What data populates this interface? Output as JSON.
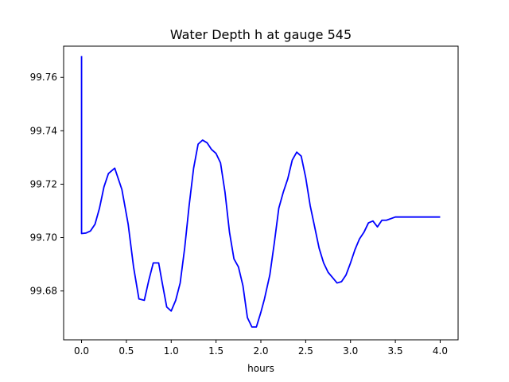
{
  "chart_data": {
    "type": "line",
    "title": "Water Depth h at gauge 545",
    "xlabel": "hours",
    "ylabel": "",
    "xlim": [
      -0.2,
      4.2
    ],
    "ylim": [
      99.6617,
      99.7717
    ],
    "x_ticks": [
      0.0,
      0.5,
      1.0,
      1.5,
      2.0,
      2.5,
      3.0,
      3.5,
      4.0
    ],
    "x_tick_labels": [
      "0.0",
      "0.5",
      "1.0",
      "1.5",
      "2.0",
      "2.5",
      "3.0",
      "3.5",
      "4.0"
    ],
    "y_ticks": [
      99.68,
      99.7,
      99.72,
      99.74,
      99.76
    ],
    "y_tick_labels": [
      "99.68",
      "99.70",
      "99.72",
      "99.74",
      "99.76"
    ],
    "grid": false,
    "series": [
      {
        "color": "#0000ff",
        "x": [
          0.0,
          0.0,
          0.05,
          0.1,
          0.15,
          0.2,
          0.25,
          0.3,
          0.37,
          0.45,
          0.52,
          0.58,
          0.64,
          0.7,
          0.75,
          0.8,
          0.86,
          0.9,
          0.95,
          1.0,
          1.05,
          1.1,
          1.15,
          1.2,
          1.25,
          1.3,
          1.35,
          1.4,
          1.45,
          1.5,
          1.55,
          1.6,
          1.65,
          1.7,
          1.75,
          1.8,
          1.85,
          1.9,
          1.95,
          2.0,
          2.04,
          2.1,
          2.15,
          2.2,
          2.25,
          2.3,
          2.35,
          2.4,
          2.45,
          2.5,
          2.55,
          2.6,
          2.65,
          2.7,
          2.75,
          2.8,
          2.85,
          2.9,
          2.95,
          3.0,
          3.05,
          3.1,
          3.15,
          3.2,
          3.25,
          3.3,
          3.35,
          3.4,
          3.5,
          3.6,
          3.7,
          3.8,
          3.9,
          4.0
        ],
        "y": [
          99.768,
          99.7015,
          99.7017,
          99.7025,
          99.705,
          99.711,
          99.719,
          99.724,
          99.726,
          99.718,
          99.705,
          99.689,
          99.677,
          99.6765,
          99.684,
          99.6905,
          99.6905,
          99.683,
          99.674,
          99.6725,
          99.6765,
          99.683,
          99.696,
          99.712,
          99.726,
          99.735,
          99.7365,
          99.7355,
          99.733,
          99.7315,
          99.728,
          99.717,
          99.702,
          99.692,
          99.689,
          99.682,
          99.67,
          99.6665,
          99.6665,
          99.672,
          99.677,
          99.686,
          99.698,
          99.711,
          99.717,
          99.722,
          99.729,
          99.732,
          99.7305,
          99.7225,
          99.712,
          99.704,
          99.696,
          99.6905,
          99.687,
          99.685,
          99.683,
          99.6835,
          99.686,
          99.6905,
          99.6955,
          99.6995,
          99.702,
          99.7055,
          99.7062,
          99.704,
          99.7065,
          99.7065,
          99.7077,
          99.7077,
          99.7077,
          99.7077,
          99.7077,
          99.7077
        ]
      }
    ]
  }
}
